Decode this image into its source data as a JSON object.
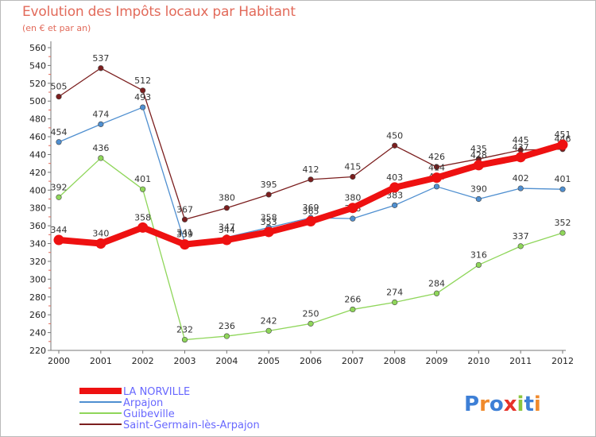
{
  "title": "Evolution des Impôts locaux par Habitant",
  "subtitle": "(en € et par an)",
  "logo": "Proxiti",
  "chart_data": {
    "type": "line",
    "title": "Evolution des Impôts locaux par Habitant",
    "subtitle": "(en € et par an)",
    "categories": [
      "2000",
      "2001",
      "2002",
      "2003",
      "2004",
      "2005",
      "2006",
      "2007",
      "2008",
      "2009",
      "2010",
      "2011",
      "2012"
    ],
    "ylim": [
      220,
      560
    ],
    "yticks": [
      220,
      240,
      260,
      280,
      300,
      320,
      340,
      360,
      380,
      400,
      420,
      440,
      460,
      480,
      500,
      520,
      540,
      560
    ],
    "grid": false,
    "legend_position": "bottom-left",
    "series": [
      {
        "name": "Saint-Germain-lès-Arpajon",
        "color": "#7b1e1e",
        "values": [
          505,
          537,
          512,
          367,
          380,
          395,
          412,
          415,
          450,
          426,
          435,
          445,
          446
        ]
      },
      {
        "name": "Arpajon",
        "color": "#4f8fd0",
        "values": [
          454,
          474,
          493,
          341,
          347,
          358,
          369,
          368,
          383,
          404,
          390,
          402,
          401
        ]
      },
      {
        "name": "Guibeville",
        "color": "#8fd65a",
        "values": [
          392,
          436,
          401,
          232,
          236,
          242,
          250,
          266,
          274,
          284,
          316,
          337,
          352
        ]
      },
      {
        "name": "LA NORVILLE",
        "color": "#ee1111",
        "values": [
          344,
          340,
          358,
          339,
          344,
          353,
          365,
          380,
          403,
          414,
          428,
          437,
          451
        ]
      }
    ]
  }
}
